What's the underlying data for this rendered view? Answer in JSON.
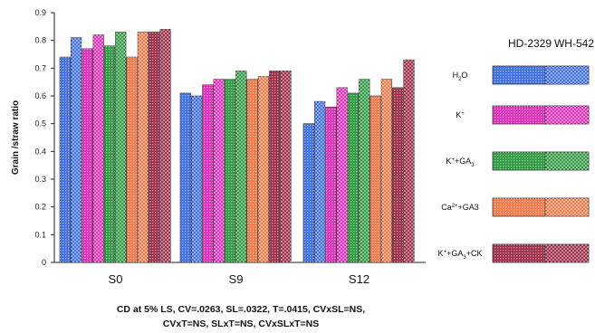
{
  "chart_data": {
    "type": "bar",
    "categories": [
      "S0",
      "S9",
      "S12"
    ],
    "ylabel": "Grain /straw ratio",
    "ylim": [
      0,
      0.9
    ],
    "ytick_labels": [
      "0",
      "0.1",
      "0.2",
      "0.3",
      "0.4",
      "0.5",
      "0.6",
      "0.7",
      "0.8",
      "0.9"
    ],
    "grid": false,
    "legend_position": "right",
    "varieties": [
      "HD-2329",
      "WH-542"
    ],
    "treatments": [
      {
        "label": "H2O",
        "color": "#3f6fe0"
      },
      {
        "label": "K+",
        "color": "#dd2fb8"
      },
      {
        "label": "K+GA3",
        "color": "#2f9a42"
      },
      {
        "label": "Ca2+GA3",
        "color": "#f07a4a"
      },
      {
        "label": "K+GA3+CK",
        "color": "#9e2f4a"
      }
    ],
    "series": [
      {
        "name": "H2O HD-2329",
        "values": [
          0.74,
          0.61,
          0.5
        ]
      },
      {
        "name": "H2O WH-542",
        "values": [
          0.81,
          0.6,
          0.58
        ]
      },
      {
        "name": "K+ HD-2329",
        "values": [
          0.77,
          0.64,
          0.56
        ]
      },
      {
        "name": "K+ WH-542",
        "values": [
          0.82,
          0.66,
          0.63
        ]
      },
      {
        "name": "K+GA3 HD-2329",
        "values": [
          0.78,
          0.66,
          0.61
        ]
      },
      {
        "name": "K+GA3 WH-542",
        "values": [
          0.83,
          0.69,
          0.66
        ]
      },
      {
        "name": "Ca2+GA3 HD-2329",
        "values": [
          0.74,
          0.66,
          0.6
        ]
      },
      {
        "name": "Ca2+GA3 WH-542",
        "values": [
          0.83,
          0.67,
          0.66
        ]
      },
      {
        "name": "K+GA3+CK HD-2329",
        "values": [
          0.83,
          0.69,
          0.63
        ]
      },
      {
        "name": "K+GA3+CK WH-542",
        "values": [
          0.84,
          0.69,
          0.73
        ]
      }
    ],
    "notes": [
      "CD at 5% LS, CV=.0263, SL=.0322, T=.0415, CVxSL=NS,",
      "CVxT=NS, SLxT=NS, CVxSLxT=NS"
    ]
  }
}
